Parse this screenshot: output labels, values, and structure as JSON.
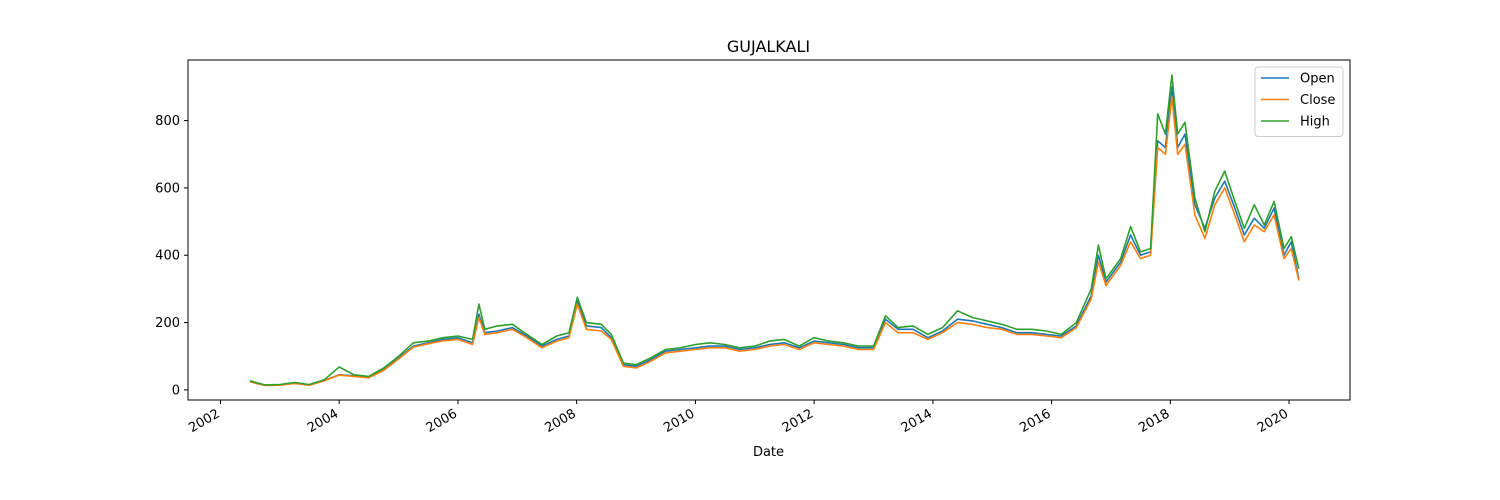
{
  "chart_data": {
    "type": "line",
    "title": "GUJALKALI",
    "xlabel": "Date",
    "ylabel": "",
    "xlim": [
      "2001-06-15",
      "2021-01-10"
    ],
    "ylim": [
      -30,
      980
    ],
    "x_ticks": [
      "2002",
      "2004",
      "2006",
      "2008",
      "2010",
      "2012",
      "2014",
      "2016",
      "2018",
      "2020"
    ],
    "y_ticks": [
      0,
      200,
      400,
      600,
      800
    ],
    "grid": false,
    "legend_position": "top-right",
    "colors": {
      "Open": "#1f77b4",
      "Close": "#ff7f0e",
      "High": "#2ca02c"
    },
    "series": [
      {
        "name": "Open",
        "x": [
          "2002-07-01",
          "2002-10-01",
          "2003-01-01",
          "2003-04-01",
          "2003-07-01",
          "2003-10-01",
          "2004-01-01",
          "2004-04-01",
          "2004-07-01",
          "2004-10-01",
          "2005-01-01",
          "2005-04-01",
          "2005-07-01",
          "2005-10-01",
          "2006-01-01",
          "2006-04-01",
          "2006-05-10",
          "2006-06-15",
          "2006-09-01",
          "2006-12-01",
          "2007-03-01",
          "2007-06-01",
          "2007-09-01",
          "2007-11-15",
          "2008-01-05",
          "2008-03-01",
          "2008-06-01",
          "2008-08-01",
          "2008-10-15",
          "2009-01-01",
          "2009-04-01",
          "2009-07-01",
          "2009-10-01",
          "2010-01-01",
          "2010-04-01",
          "2010-07-01",
          "2010-10-01",
          "2011-01-01",
          "2011-04-01",
          "2011-07-01",
          "2011-10-01",
          "2012-01-01",
          "2012-04-01",
          "2012-07-01",
          "2012-10-01",
          "2013-01-01",
          "2013-03-15",
          "2013-06-01",
          "2013-09-01",
          "2013-12-01",
          "2014-03-01",
          "2014-06-01",
          "2014-09-01",
          "2014-12-01",
          "2015-03-01",
          "2015-06-01",
          "2015-09-01",
          "2015-12-01",
          "2016-03-01",
          "2016-06-01",
          "2016-09-01",
          "2016-10-15",
          "2016-12-01",
          "2017-03-01",
          "2017-05-01",
          "2017-07-01",
          "2017-09-01",
          "2017-10-15",
          "2017-12-01",
          "2018-01-10",
          "2018-02-15",
          "2018-04-01",
          "2018-06-01",
          "2018-08-01",
          "2018-10-01",
          "2018-12-01",
          "2019-02-01",
          "2019-04-01",
          "2019-06-01",
          "2019-08-01",
          "2019-10-01",
          "2019-12-01",
          "2020-01-15",
          "2020-03-01"
        ],
        "y": [
          25,
          14,
          15,
          20,
          15,
          28,
          45,
          42,
          38,
          60,
          95,
          130,
          140,
          150,
          155,
          140,
          225,
          170,
          175,
          185,
          160,
          130,
          150,
          160,
          265,
          190,
          185,
          155,
          75,
          70,
          90,
          115,
          120,
          125,
          130,
          130,
          120,
          125,
          135,
          140,
          125,
          145,
          140,
          135,
          125,
          125,
          210,
          180,
          180,
          155,
          175,
          210,
          205,
          195,
          185,
          170,
          170,
          165,
          160,
          190,
          280,
          400,
          320,
          380,
          460,
          400,
          410,
          740,
          720,
          900,
          720,
          760,
          550,
          480,
          570,
          620,
          540,
          460,
          510,
          480,
          540,
          400,
          440,
          330
        ]
      },
      {
        "name": "Close",
        "x": [
          "2002-07-01",
          "2002-10-01",
          "2003-01-01",
          "2003-04-01",
          "2003-07-01",
          "2003-10-01",
          "2004-01-01",
          "2004-04-01",
          "2004-07-01",
          "2004-10-01",
          "2005-01-01",
          "2005-04-01",
          "2005-07-01",
          "2005-10-01",
          "2006-01-01",
          "2006-04-01",
          "2006-05-10",
          "2006-06-15",
          "2006-09-01",
          "2006-12-01",
          "2007-03-01",
          "2007-06-01",
          "2007-09-01",
          "2007-11-15",
          "2008-01-05",
          "2008-03-01",
          "2008-06-01",
          "2008-08-01",
          "2008-10-15",
          "2009-01-01",
          "2009-04-01",
          "2009-07-01",
          "2009-10-01",
          "2010-01-01",
          "2010-04-01",
          "2010-07-01",
          "2010-10-01",
          "2011-01-01",
          "2011-04-01",
          "2011-07-01",
          "2011-10-01",
          "2012-01-01",
          "2012-04-01",
          "2012-07-01",
          "2012-10-01",
          "2013-01-01",
          "2013-03-15",
          "2013-06-01",
          "2013-09-01",
          "2013-12-01",
          "2014-03-01",
          "2014-06-01",
          "2014-09-01",
          "2014-12-01",
          "2015-03-01",
          "2015-06-01",
          "2015-09-01",
          "2015-12-01",
          "2016-03-01",
          "2016-06-01",
          "2016-09-01",
          "2016-10-15",
          "2016-12-01",
          "2017-03-01",
          "2017-05-01",
          "2017-07-01",
          "2017-09-01",
          "2017-10-15",
          "2017-12-01",
          "2018-01-10",
          "2018-02-15",
          "2018-04-01",
          "2018-06-01",
          "2018-08-01",
          "2018-10-01",
          "2018-12-01",
          "2019-02-01",
          "2019-04-01",
          "2019-06-01",
          "2019-08-01",
          "2019-10-01",
          "2019-12-01",
          "2020-01-15",
          "2020-03-01"
        ],
        "y": [
          24,
          13,
          14,
          19,
          14,
          27,
          44,
          40,
          36,
          58,
          92,
          127,
          137,
          146,
          150,
          135,
          215,
          165,
          170,
          180,
          155,
          125,
          145,
          155,
          255,
          180,
          175,
          150,
          70,
          65,
          85,
          110,
          115,
          120,
          125,
          125,
          115,
          120,
          130,
          135,
          120,
          140,
          135,
          130,
          120,
          120,
          200,
          170,
          170,
          150,
          170,
          200,
          195,
          185,
          180,
          165,
          165,
          160,
          155,
          185,
          270,
          380,
          310,
          370,
          440,
          390,
          400,
          720,
          700,
          870,
          700,
          730,
          520,
          450,
          550,
          600,
          520,
          440,
          490,
          470,
          520,
          390,
          420,
          325
        ]
      },
      {
        "name": "High",
        "x": [
          "2002-07-01",
          "2002-10-01",
          "2003-01-01",
          "2003-04-01",
          "2003-07-01",
          "2003-10-01",
          "2004-01-01",
          "2004-04-01",
          "2004-07-01",
          "2004-10-01",
          "2005-01-01",
          "2005-04-01",
          "2005-07-01",
          "2005-10-01",
          "2006-01-01",
          "2006-04-01",
          "2006-05-10",
          "2006-06-15",
          "2006-09-01",
          "2006-12-01",
          "2007-03-01",
          "2007-06-01",
          "2007-09-01",
          "2007-11-15",
          "2008-01-05",
          "2008-03-01",
          "2008-06-01",
          "2008-08-01",
          "2008-10-15",
          "2009-01-01",
          "2009-04-01",
          "2009-07-01",
          "2009-10-01",
          "2010-01-01",
          "2010-04-01",
          "2010-07-01",
          "2010-10-01",
          "2011-01-01",
          "2011-04-01",
          "2011-07-01",
          "2011-10-01",
          "2012-01-01",
          "2012-04-01",
          "2012-07-01",
          "2012-10-01",
          "2013-01-01",
          "2013-03-15",
          "2013-06-01",
          "2013-09-01",
          "2013-12-01",
          "2014-03-01",
          "2014-06-01",
          "2014-09-01",
          "2014-12-01",
          "2015-03-01",
          "2015-06-01",
          "2015-09-01",
          "2015-12-01",
          "2016-03-01",
          "2016-06-01",
          "2016-09-01",
          "2016-10-15",
          "2016-12-01",
          "2017-03-01",
          "2017-05-01",
          "2017-07-01",
          "2017-09-01",
          "2017-10-15",
          "2017-12-01",
          "2018-01-10",
          "2018-02-15",
          "2018-04-01",
          "2018-06-01",
          "2018-08-01",
          "2018-10-01",
          "2018-12-01",
          "2019-02-01",
          "2019-04-01",
          "2019-06-01",
          "2019-08-01",
          "2019-10-01",
          "2019-12-01",
          "2020-01-15",
          "2020-03-01"
        ],
        "y": [
          27,
          15,
          16,
          22,
          16,
          30,
          68,
          45,
          40,
          65,
          100,
          140,
          145,
          155,
          160,
          150,
          255,
          180,
          190,
          195,
          165,
          135,
          160,
          170,
          275,
          200,
          195,
          165,
          80,
          75,
          95,
          120,
          125,
          135,
          140,
          135,
          125,
          130,
          145,
          150,
          130,
          155,
          145,
          140,
          130,
          130,
          220,
          185,
          190,
          165,
          185,
          235,
          215,
          205,
          195,
          180,
          180,
          175,
          165,
          200,
          300,
          430,
          330,
          390,
          485,
          410,
          420,
          820,
          760,
          935,
          760,
          795,
          570,
          470,
          590,
          650,
          560,
          480,
          550,
          490,
          560,
          420,
          455,
          360
        ]
      }
    ]
  }
}
